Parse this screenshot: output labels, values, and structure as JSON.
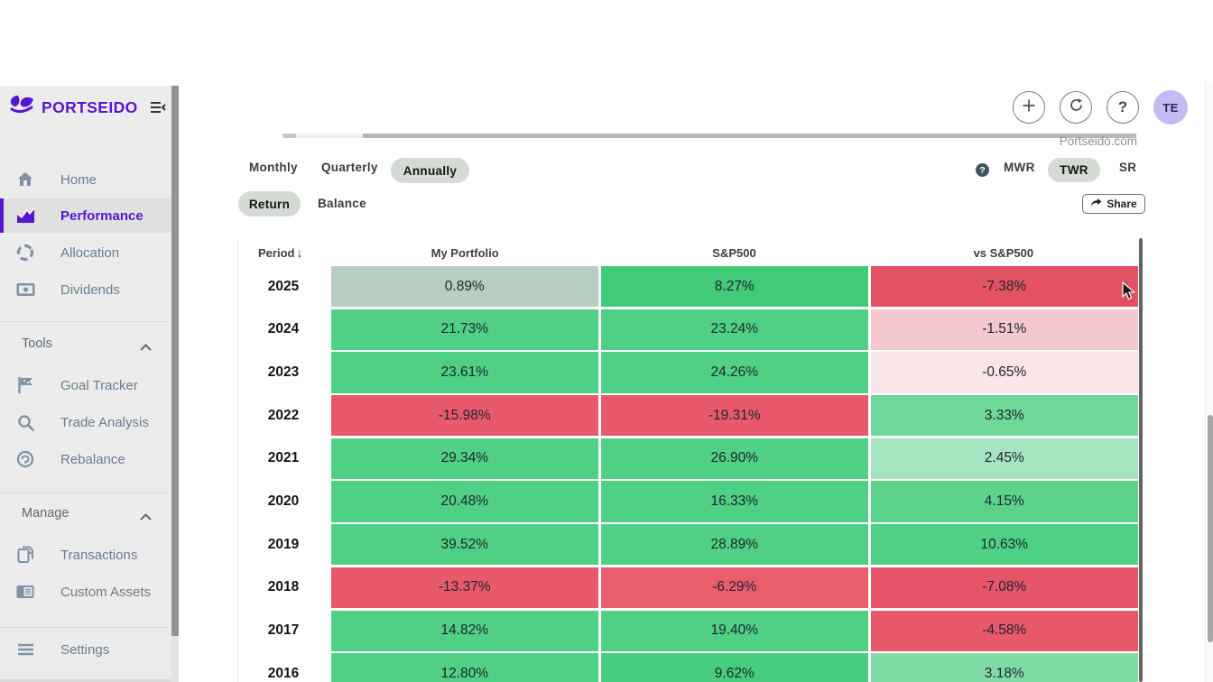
{
  "brand": {
    "name": "PORTSEIDO",
    "accent_color": "#5417d2"
  },
  "topbar": {
    "watermark": "Portseido.com",
    "avatar_initials": "TE",
    "avatar_color": "#c7b9f3",
    "buttons": [
      {
        "name": "add",
        "icon": "plus-icon"
      },
      {
        "name": "refresh",
        "icon": "refresh-icon"
      },
      {
        "name": "help",
        "icon": "question-icon"
      }
    ]
  },
  "sidebar": {
    "main": [
      {
        "label": "Home",
        "icon": "home-icon",
        "active": false
      },
      {
        "label": "Performance",
        "icon": "performance-chart-icon",
        "active": true
      },
      {
        "label": "Allocation",
        "icon": "allocation-icon",
        "active": false
      },
      {
        "label": "Dividends",
        "icon": "dividends-icon",
        "active": false
      }
    ],
    "tools_header": "Tools",
    "tools": [
      {
        "label": "Goal Tracker",
        "icon": "flag-icon"
      },
      {
        "label": "Trade Analysis",
        "icon": "search-icon"
      },
      {
        "label": "Rebalance",
        "icon": "rebalance-icon"
      }
    ],
    "manage_header": "Manage",
    "manage": [
      {
        "label": "Transactions",
        "icon": "documents-icon"
      },
      {
        "label": "Custom Assets",
        "icon": "card-icon"
      }
    ],
    "settings_label": "Settings"
  },
  "controls": {
    "period_tabs": [
      {
        "label": "Monthly",
        "selected": false
      },
      {
        "label": "Quarterly",
        "selected": false
      },
      {
        "label": "Annually",
        "selected": true
      }
    ],
    "view_tabs": [
      {
        "label": "Return",
        "selected": true
      },
      {
        "label": "Balance",
        "selected": false
      }
    ],
    "method_tabs": [
      {
        "label": "MWR",
        "selected": false
      },
      {
        "label": "TWR",
        "selected": true
      },
      {
        "label": "SR",
        "selected": false
      }
    ],
    "share_label": "Share"
  },
  "table": {
    "columns": [
      "Period",
      "My Portfolio",
      "S&P500",
      "vs S&P500"
    ],
    "sort": "desc",
    "rows": [
      {
        "year": "2025",
        "cells": [
          {
            "v": "0.89%",
            "bg": "#b7cfc0"
          },
          {
            "v": "8.27%",
            "bg": "#43ca78"
          },
          {
            "v": "-7.38%",
            "bg": "#e25263"
          }
        ]
      },
      {
        "year": "2024",
        "cells": [
          {
            "v": "21.73%",
            "bg": "#4fd084"
          },
          {
            "v": "23.24%",
            "bg": "#4fd084"
          },
          {
            "v": "-1.51%",
            "bg": "#f5c8ce"
          }
        ]
      },
      {
        "year": "2023",
        "cells": [
          {
            "v": "23.61%",
            "bg": "#4fd084"
          },
          {
            "v": "24.26%",
            "bg": "#4fd084"
          },
          {
            "v": "-0.65%",
            "bg": "#fae5e8"
          }
        ]
      },
      {
        "year": "2022",
        "cells": [
          {
            "v": "-15.98%",
            "bg": "#e8596b"
          },
          {
            "v": "-19.31%",
            "bg": "#e8596b"
          },
          {
            "v": "3.33%",
            "bg": "#70d898"
          }
        ]
      },
      {
        "year": "2021",
        "cells": [
          {
            "v": "29.34%",
            "bg": "#4fd084"
          },
          {
            "v": "26.90%",
            "bg": "#4fd084"
          },
          {
            "v": "2.45%",
            "bg": "#a6e4c1"
          }
        ]
      },
      {
        "year": "2020",
        "cells": [
          {
            "v": "20.48%",
            "bg": "#4fd084"
          },
          {
            "v": "16.33%",
            "bg": "#4fd084"
          },
          {
            "v": "4.15%",
            "bg": "#5cd38b"
          }
        ]
      },
      {
        "year": "2019",
        "cells": [
          {
            "v": "39.52%",
            "bg": "#4fd084"
          },
          {
            "v": "28.89%",
            "bg": "#4fd084"
          },
          {
            "v": "10.63%",
            "bg": "#4fd084"
          }
        ]
      },
      {
        "year": "2018",
        "cells": [
          {
            "v": "-13.37%",
            "bg": "#e8596b"
          },
          {
            "v": "-6.29%",
            "bg": "#ea5d6c"
          },
          {
            "v": "-7.08%",
            "bg": "#e5566a"
          }
        ]
      },
      {
        "year": "2017",
        "cells": [
          {
            "v": "14.82%",
            "bg": "#4fd084"
          },
          {
            "v": "19.40%",
            "bg": "#4fd084"
          },
          {
            "v": "-4.58%",
            "bg": "#e8596b"
          }
        ]
      },
      {
        "year": "2016",
        "cells": [
          {
            "v": "12.80%",
            "bg": "#4fd084"
          },
          {
            "v": "9.62%",
            "bg": "#47cd7d"
          },
          {
            "v": "3.18%",
            "bg": "#7fdca4"
          }
        ]
      }
    ]
  },
  "colors": {
    "positive": "#4fd084",
    "negative": "#e8596b",
    "muted_positive": "#b7cfc0",
    "pill_bg": "#d4dad4"
  }
}
